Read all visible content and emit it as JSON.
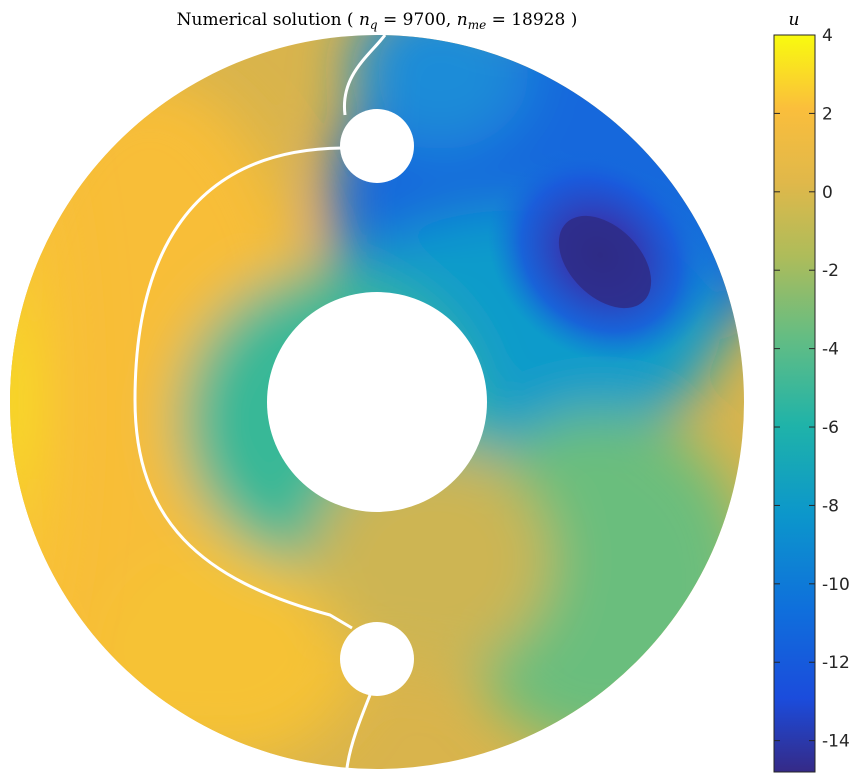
{
  "chart_data": {
    "type": "heatmap",
    "title_prefix": "Numerical solution ( ",
    "title_nq_sym": "n",
    "title_nq_sub": "q",
    "title_nq_val": " = 9700, ",
    "title_nme_sym": "n",
    "title_nme_sub": "me",
    "title_nme_val": " = 18928 )",
    "nq": 9700,
    "nme": 18928,
    "colorbar": {
      "label": "u",
      "range": [
        -14.8,
        4
      ],
      "ticks": [
        4,
        2,
        0,
        -2,
        -4,
        -6,
        -8,
        -10,
        -12,
        -14
      ],
      "tick_labels": [
        "4",
        "2",
        "0",
        "-2",
        "-4",
        "-6",
        "-8",
        "-10",
        "-12",
        "-14"
      ],
      "colormap": "parula"
    },
    "field": {
      "geometry": "annulus with three circular holes",
      "regions": [
        {
          "name": "left band",
          "value": 2.5
        },
        {
          "name": "outer left rim",
          "value": 4
        },
        {
          "name": "upper right minimum",
          "value": -14.8
        },
        {
          "name": "center area",
          "value": -5
        },
        {
          "name": "lower right",
          "value": -3.5
        }
      ],
      "contour_value": 1,
      "contour_color": "#ffffff"
    },
    "grid": false
  }
}
